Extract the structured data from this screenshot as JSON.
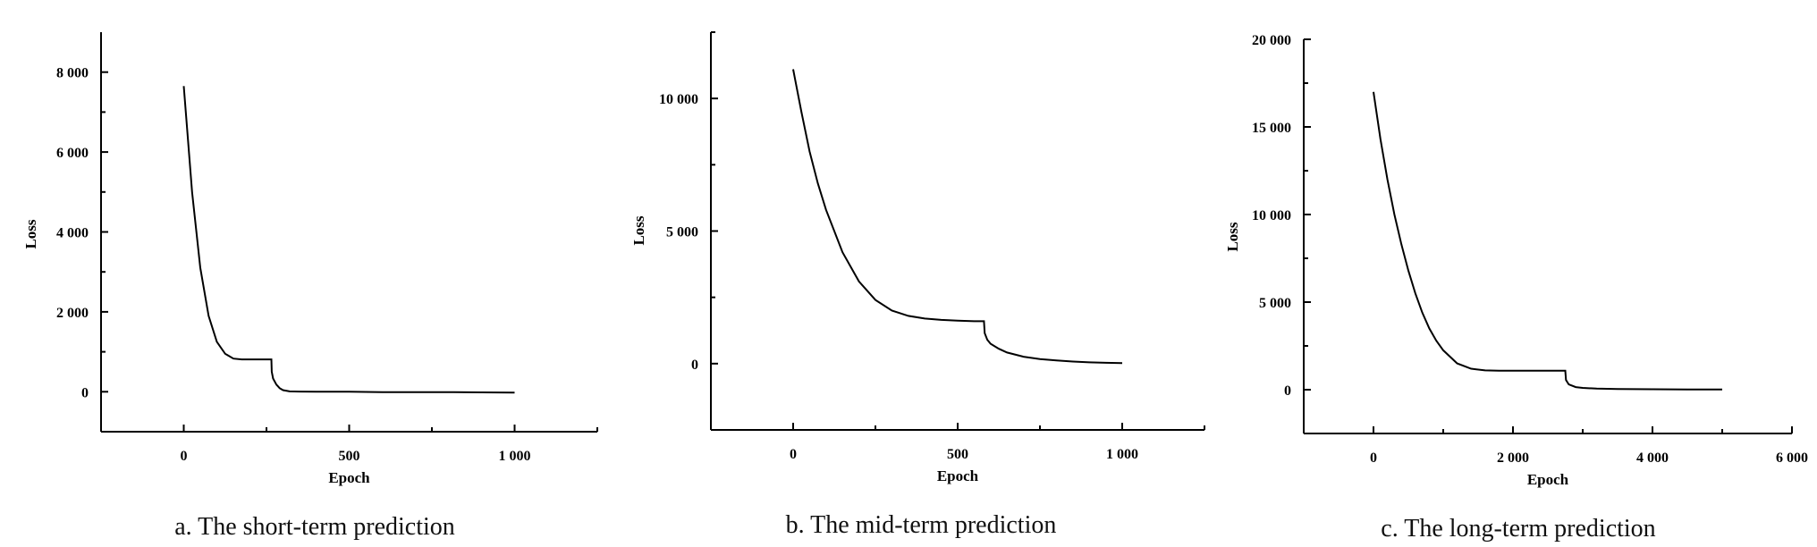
{
  "chart_data": [
    {
      "type": "line",
      "caption": "a. The short-term prediction",
      "xlabel": "Epoch",
      "ylabel": "Loss",
      "xlim": [
        -250,
        1250
      ],
      "ylim": [
        -1000,
        9000
      ],
      "x_ticks": [
        0,
        500,
        1000
      ],
      "x_tick_labels": [
        "0",
        "500",
        "1 000"
      ],
      "y_ticks": [
        0,
        2000,
        4000,
        6000,
        8000
      ],
      "y_tick_labels": [
        "0",
        "2 000",
        "4 000",
        "6 000",
        "8 000"
      ],
      "y_minor_ticks": [
        -1000,
        1000,
        3000,
        5000,
        7000
      ],
      "series": [
        {
          "x": [
            0,
            10,
            25,
            50,
            75,
            100,
            125,
            150,
            175,
            200,
            225,
            250,
            265,
            266,
            270,
            280,
            290,
            300,
            320,
            350,
            400,
            500,
            600,
            700,
            800,
            900,
            1000
          ],
          "y": [
            7650,
            6600,
            5000,
            3100,
            1900,
            1250,
            950,
            830,
            810,
            810,
            810,
            810,
            810,
            500,
            330,
            180,
            90,
            40,
            10,
            5,
            0,
            0,
            -10,
            -10,
            -10,
            -15,
            -20
          ]
        }
      ]
    },
    {
      "type": "line",
      "caption": "b. The mid-term prediction",
      "xlabel": "Epoch",
      "ylabel": "Loss",
      "xlim": [
        -250,
        1250
      ],
      "ylim": [
        -2500,
        12500
      ],
      "x_ticks": [
        0,
        500,
        1000
      ],
      "x_tick_labels": [
        "0",
        "500",
        "1 000"
      ],
      "y_ticks": [
        0,
        5000,
        10000
      ],
      "y_tick_labels": [
        "0",
        "5 000",
        "10 000"
      ],
      "y_minor_ticks": [
        -2500,
        2500,
        7500,
        12500
      ],
      "series": [
        {
          "x": [
            0,
            25,
            50,
            75,
            100,
            150,
            200,
            250,
            300,
            350,
            400,
            450,
            500,
            550,
            580,
            582,
            590,
            600,
            625,
            650,
            700,
            750,
            800,
            850,
            900,
            950,
            1000
          ],
          "y": [
            11100,
            9500,
            8000,
            6800,
            5800,
            4200,
            3100,
            2400,
            2000,
            1800,
            1700,
            1650,
            1620,
            1600,
            1600,
            1150,
            900,
            750,
            560,
            420,
            260,
            170,
            120,
            80,
            50,
            30,
            20
          ]
        }
      ]
    },
    {
      "type": "line",
      "caption": "c. The long-term prediction",
      "xlabel": "Epoch",
      "ylabel": "Loss",
      "xlim": [
        -1000,
        6000
      ],
      "ylim": [
        -2500,
        20000
      ],
      "x_ticks": [
        0,
        2000,
        4000,
        6000
      ],
      "x_tick_labels": [
        "0",
        "2 000",
        "4 000",
        "6 000"
      ],
      "y_ticks": [
        0,
        5000,
        10000,
        15000,
        20000
      ],
      "y_tick_labels": [
        "0",
        "5 000",
        "10 000",
        "15 000",
        "20 000"
      ],
      "y_minor_ticks": [
        -2500,
        2500,
        7500,
        12500,
        17500
      ],
      "series": [
        {
          "x": [
            0,
            100,
            200,
            300,
            400,
            500,
            600,
            700,
            800,
            900,
            1000,
            1200,
            1400,
            1600,
            1800,
            2000,
            2200,
            2400,
            2600,
            2750,
            2760,
            2800,
            2900,
            3000,
            3200,
            3500,
            4000,
            4500,
            5000
          ],
          "y": [
            17000,
            14300,
            12000,
            10000,
            8300,
            6800,
            5500,
            4400,
            3500,
            2800,
            2250,
            1500,
            1200,
            1100,
            1080,
            1080,
            1080,
            1080,
            1080,
            1080,
            550,
            300,
            150,
            100,
            60,
            40,
            25,
            15,
            10
          ]
        }
      ]
    }
  ]
}
